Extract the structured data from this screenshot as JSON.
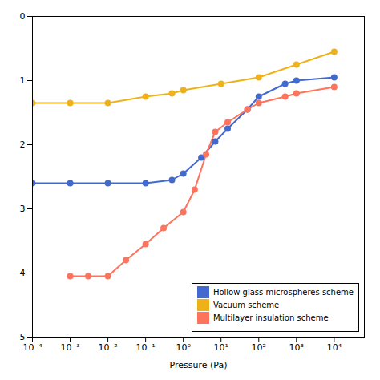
{
  "chart_data": {
    "type": "line",
    "title": "",
    "xlabel": "Pressure (Pa)",
    "ylabel": "",
    "log": "x",
    "marker": "circle",
    "legend": "lower right",
    "xlim": [
      0.0001,
      63095.73444801943
    ],
    "xticks": [
      {
        "value": 0.0001,
        "label": "10⁻⁴"
      },
      {
        "value": 0.001,
        "label": "10⁻³"
      },
      {
        "value": 0.01,
        "label": "10⁻²"
      },
      {
        "value": 0.1,
        "label": "10⁻¹"
      },
      {
        "value": 1,
        "label": "10⁰"
      },
      {
        "value": 10,
        "label": "10¹"
      },
      {
        "value": 100,
        "label": "10²"
      },
      {
        "value": 1000,
        "label": "10³"
      },
      {
        "value": 10000,
        "label": "10⁴"
      }
    ],
    "ylim": [
      5,
      0
    ],
    "yticks": [
      0,
      1,
      2,
      3,
      4,
      5
    ],
    "series": [
      {
        "name": "Hollow glass microspheres scheme",
        "x": [
          0.0001,
          0.001,
          0.01,
          0.1,
          0.5,
          1,
          3,
          7,
          15,
          50,
          100,
          500,
          1000,
          10000
        ],
        "values": [
          2.6,
          2.6,
          2.6,
          2.6,
          2.55,
          2.45,
          2.2,
          1.95,
          1.75,
          1.45,
          1.25,
          1.05,
          1.0,
          0.95
        ]
      },
      {
        "name": "Vacuum scheme",
        "x": [
          0.0001,
          0.001,
          0.01,
          0.1,
          0.5,
          1,
          10,
          100,
          1000,
          10000
        ],
        "values": [
          1.35,
          1.35,
          1.35,
          1.25,
          1.2,
          1.15,
          1.05,
          0.95,
          0.75,
          0.55
        ]
      },
      {
        "name": "Multilayer insulation scheme",
        "x": [
          0.001,
          0.003,
          0.01,
          0.03,
          0.1,
          0.3,
          1,
          2,
          4,
          7,
          15,
          50,
          100,
          500,
          1000,
          10000
        ],
        "values": [
          4.05,
          4.05,
          4.05,
          3.8,
          3.55,
          3.3,
          3.05,
          2.7,
          2.15,
          1.8,
          1.65,
          1.45,
          1.35,
          1.25,
          1.2,
          1.1
        ]
      }
    ]
  }
}
